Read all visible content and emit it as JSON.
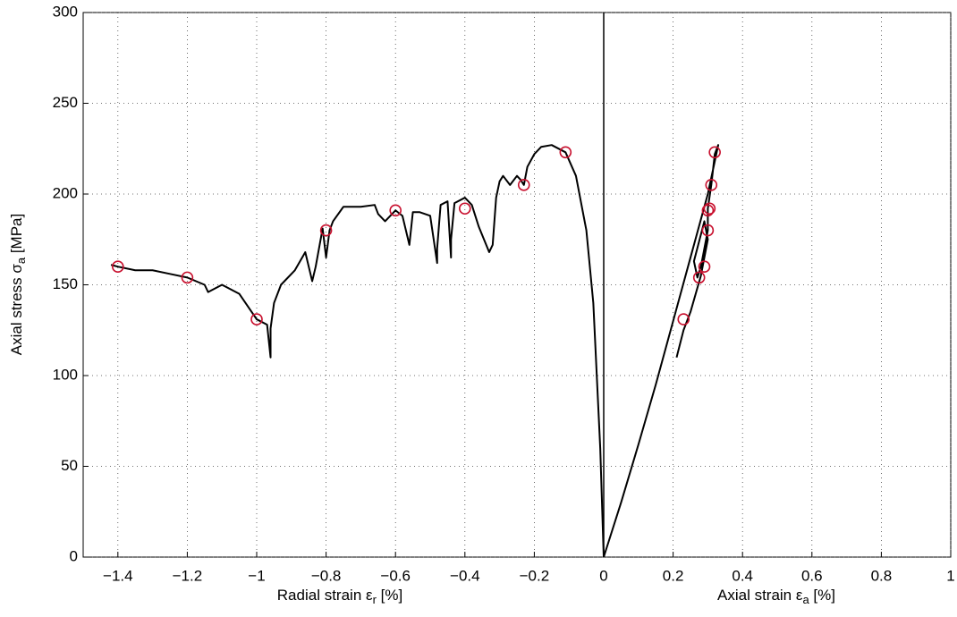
{
  "chart_data": {
    "type": "line",
    "x_label_left": [
      "Radial strain ε",
      "r",
      " [%]"
    ],
    "x_label_right": [
      "Axial strain ε",
      "a",
      " [%]"
    ],
    "y_label": [
      "Axial stress σ",
      "a",
      " [MPa]"
    ],
    "xlim": [
      -1.5,
      1
    ],
    "ylim": [
      0,
      300
    ],
    "xticks": [
      {
        "value": -1.4,
        "label": "−1.4"
      },
      {
        "value": -1.2,
        "label": "−1.2"
      },
      {
        "value": -1,
        "label": "−1"
      },
      {
        "value": -0.8,
        "label": "−0.8"
      },
      {
        "value": -0.6,
        "label": "−0.6"
      },
      {
        "value": -0.4,
        "label": "−0.4"
      },
      {
        "value": -0.2,
        "label": "−0.2"
      },
      0,
      0.2,
      0.4,
      0.6,
      0.8,
      1
    ],
    "yticks": [
      0,
      50,
      100,
      150,
      200,
      250,
      300
    ],
    "grid": true,
    "series": [
      {
        "color": "#000000",
        "style": "line",
        "x": [
          0,
          -0.005,
          -0.01,
          -0.02,
          -0.03,
          -0.05,
          -0.08,
          -0.11,
          -0.15,
          -0.18,
          -0.2,
          -0.22,
          -0.23,
          -0.24,
          -0.25,
          -0.27,
          -0.29,
          -0.3,
          -0.31,
          -0.32,
          -0.33,
          -0.36,
          -0.38,
          -0.4,
          -0.43,
          -0.44,
          -0.44,
          -0.45,
          -0.47,
          -0.48,
          -0.48,
          -0.5,
          -0.53,
          -0.55,
          -0.56,
          -0.58,
          -0.6,
          -0.63,
          -0.65,
          -0.66,
          -0.7,
          -0.75,
          -0.78,
          -0.79,
          -0.8,
          -0.81,
          -0.83,
          -0.84,
          -0.86,
          -0.89,
          -0.93,
          -0.95,
          -0.96,
          -0.96,
          -0.97,
          -1.0,
          -1.05,
          -1.1,
          -1.14,
          -1.15,
          -1.2,
          -1.25,
          -1.3,
          -1.35,
          -1.4,
          -1.42
        ],
        "values": [
          0,
          30,
          60,
          100,
          140,
          180,
          210,
          223,
          227,
          226,
          222,
          215,
          205,
          208,
          210,
          205,
          210,
          207,
          198,
          172,
          168,
          182,
          194,
          198,
          195,
          175,
          165,
          196,
          194,
          170,
          162,
          188,
          190,
          190,
          172,
          188,
          191,
          185,
          189,
          194,
          193,
          193,
          185,
          180,
          165,
          181,
          160,
          152,
          168,
          158,
          150,
          140,
          126,
          110,
          128,
          131,
          145,
          150,
          146,
          150,
          154,
          156,
          158,
          158,
          160,
          161
        ]
      },
      {
        "color": "#000000",
        "style": "line",
        "x": [
          0,
          0.05,
          0.1,
          0.15,
          0.2,
          0.25,
          0.3,
          0.33,
          0.32,
          0.31,
          0.3,
          0.3,
          0.29,
          0.28,
          0.27,
          0.26,
          0.29,
          0.3,
          0.28,
          0.25,
          0.23,
          0.21
        ],
        "values": [
          0,
          30,
          62,
          95,
          130,
          165,
          200,
          227,
          222,
          205,
          192,
          180,
          170,
          160,
          154,
          163,
          185,
          175,
          155,
          135,
          125,
          110
        ]
      },
      {
        "color": "#c8102e",
        "style": "markers",
        "x": [
          -1.4,
          -1.2,
          -1.0,
          -0.8,
          -0.6,
          -0.4,
          -0.23,
          -0.11,
          0.32,
          0.31,
          0.305,
          0.3,
          0.3,
          0.29,
          0.275,
          0.23
        ],
        "values": [
          160,
          154,
          131,
          180,
          191,
          192,
          205,
          223,
          223,
          205,
          192,
          191,
          180,
          160,
          154,
          131
        ]
      }
    ]
  }
}
